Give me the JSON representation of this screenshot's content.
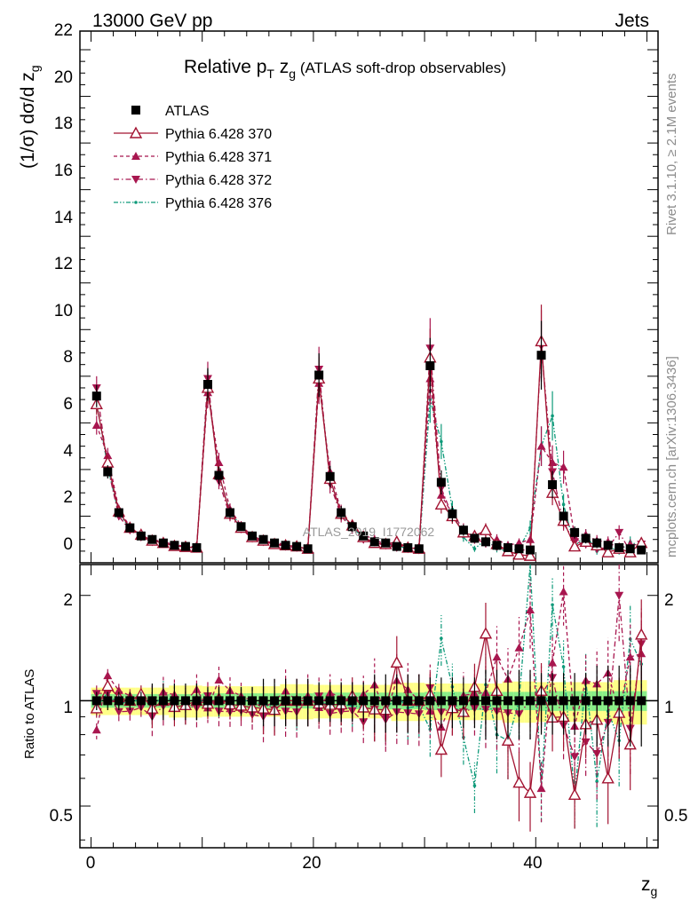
{
  "header": {
    "left": "13000 GeV pp",
    "right": "Jets"
  },
  "side_labels": {
    "top": "Rivet 3.1.10, ≥ 2.1M events",
    "bottom": "mcplots.cern.ch [arXiv:1306.3436]"
  },
  "watermark": "ATLAS_2019_I1772062",
  "main_panel": {
    "title": "Relative p",
    "title_sub": "T",
    "title_mid": " z",
    "title_sub2": "g",
    "title_tail": " (ATLAS soft-drop observables)",
    "ylabel": "(1/σ) dσ/d z",
    "ylabel_sub": "g",
    "yticks": [
      "0",
      "2",
      "4",
      "6",
      "8",
      "10",
      "12",
      "14",
      "16",
      "18",
      "20",
      "22"
    ]
  },
  "ratio_panel": {
    "ylabel": "Ratio to ATLAS",
    "yticks": [
      "0.5",
      "1",
      "2"
    ]
  },
  "xaxis": {
    "label": "z",
    "label_sub": "g",
    "ticks": [
      "0",
      "20",
      "40"
    ]
  },
  "legend": [
    {
      "label": "ATLAS",
      "color": "#000000",
      "marker": "square-filled",
      "line": "none"
    },
    {
      "label": "Pythia 6.428 370",
      "color": "#a31432",
      "marker": "triangle-up-open",
      "line": "solid"
    },
    {
      "label": "Pythia 6.428 371",
      "color": "#a8164f",
      "marker": "triangle-up-filled",
      "line": "dashed"
    },
    {
      "label": "Pythia 6.428 372",
      "color": "#a8164f",
      "marker": "triangle-down-filled",
      "line": "dashdot"
    },
    {
      "label": "Pythia 6.428 376",
      "color": "#0f9a7a",
      "marker": "dot",
      "line": "dashdotdot"
    }
  ],
  "chart_data": {
    "type": "line",
    "xlabel": "z_g",
    "ylabel": "(1/σ) dσ/d z_g",
    "xlim": [
      -1,
      51
    ],
    "ylim": [
      0,
      22.8
    ],
    "ratio_ylim_log": [
      0.38,
      2.45
    ],
    "x": [
      0.5,
      1.5,
      2.5,
      3.5,
      4.5,
      5.5,
      6.5,
      7.5,
      8.5,
      9.5,
      10.5,
      11.5,
      12.5,
      13.5,
      14.5,
      15.5,
      16.5,
      17.5,
      18.5,
      19.5,
      20.5,
      21.5,
      22.5,
      23.5,
      24.5,
      25.5,
      26.5,
      27.5,
      28.5,
      29.5,
      30.5,
      31.5,
      32.5,
      33.5,
      34.5,
      35.5,
      36.5,
      37.5,
      38.5,
      39.5,
      40.5,
      41.5,
      42.5,
      43.5,
      44.5,
      45.5,
      46.5,
      47.5,
      48.5,
      49.5
    ],
    "series": [
      {
        "name": "ATLAS",
        "values": [
          7.15,
          3.9,
          2.15,
          1.5,
          1.15,
          1.0,
          0.85,
          0.75,
          0.7,
          0.65,
          7.65,
          3.75,
          2.15,
          1.55,
          1.15,
          1.0,
          0.85,
          0.75,
          0.7,
          0.6,
          8.05,
          3.7,
          2.15,
          1.55,
          1.15,
          0.9,
          0.85,
          0.7,
          0.65,
          0.6,
          8.45,
          3.45,
          2.1,
          1.4,
          1.05,
          0.9,
          0.75,
          0.65,
          0.6,
          0.55,
          8.9,
          3.35,
          2.0,
          1.3,
          1.05,
          0.85,
          0.75,
          0.65,
          0.6,
          0.55
        ]
      },
      {
        "name": "Pythia 6.428 370",
        "values": [
          6.8,
          4.3,
          2.2,
          1.5,
          1.2,
          0.95,
          0.85,
          0.72,
          0.68,
          0.65,
          7.5,
          3.8,
          2.1,
          1.5,
          1.1,
          0.95,
          0.8,
          0.75,
          0.7,
          0.6,
          7.9,
          3.6,
          2.1,
          1.6,
          1.1,
          0.85,
          0.8,
          0.9,
          0.65,
          0.6,
          8.8,
          2.5,
          2.0,
          1.3,
          1.15,
          1.4,
          0.8,
          0.5,
          0.35,
          0.3,
          9.5,
          3.0,
          1.8,
          0.7,
          0.9,
          0.75,
          0.45,
          0.6,
          0.45,
          0.85
        ]
      },
      {
        "name": "Pythia 6.428 371",
        "values": [
          5.9,
          4.6,
          2.3,
          1.55,
          1.15,
          1.0,
          0.9,
          0.78,
          0.7,
          0.7,
          7.3,
          4.3,
          2.3,
          1.6,
          1.15,
          0.95,
          0.85,
          0.8,
          0.7,
          0.62,
          7.7,
          3.9,
          2.2,
          1.55,
          1.2,
          1.0,
          0.78,
          0.8,
          0.7,
          0.6,
          7.9,
          2.9,
          2.1,
          1.45,
          1.1,
          0.95,
          1.0,
          0.75,
          0.85,
          1.0,
          5.0,
          4.3,
          4.1,
          1.1,
          1.2,
          0.95,
          0.9,
          0.6,
          0.8,
          0.75
        ]
      },
      {
        "name": "Pythia 6.428 372",
        "values": [
          7.5,
          4.1,
          2.0,
          1.4,
          1.1,
          0.9,
          0.82,
          0.75,
          0.68,
          0.62,
          7.9,
          3.5,
          2.0,
          1.45,
          1.05,
          0.9,
          0.8,
          0.7,
          0.65,
          0.6,
          8.3,
          3.4,
          2.0,
          1.45,
          1.0,
          0.85,
          0.75,
          0.65,
          0.6,
          0.55,
          9.2,
          3.2,
          2.0,
          1.3,
          1.0,
          0.85,
          0.7,
          0.6,
          0.55,
          0.55,
          9.3,
          3.9,
          1.7,
          0.9,
          0.8,
          0.6,
          0.65,
          1.3,
          0.5,
          0.8
        ]
      },
      {
        "name": "Pythia 6.428 376",
        "values": [
          6.9,
          4.1,
          2.1,
          1.5,
          1.15,
          0.97,
          0.87,
          0.75,
          0.68,
          0.65,
          7.6,
          3.7,
          2.2,
          1.55,
          1.15,
          0.97,
          0.82,
          0.75,
          0.68,
          0.6,
          8.0,
          3.6,
          2.1,
          1.5,
          1.1,
          0.85,
          0.8,
          0.72,
          0.62,
          0.58,
          7.0,
          5.2,
          2.3,
          1.1,
          0.6,
          1.0,
          0.6,
          0.5,
          0.6,
          1.5,
          5.0,
          6.3,
          2.5,
          0.7,
          1.2,
          0.5,
          0.7,
          0.5,
          0.9,
          0.7
        ]
      }
    ]
  }
}
